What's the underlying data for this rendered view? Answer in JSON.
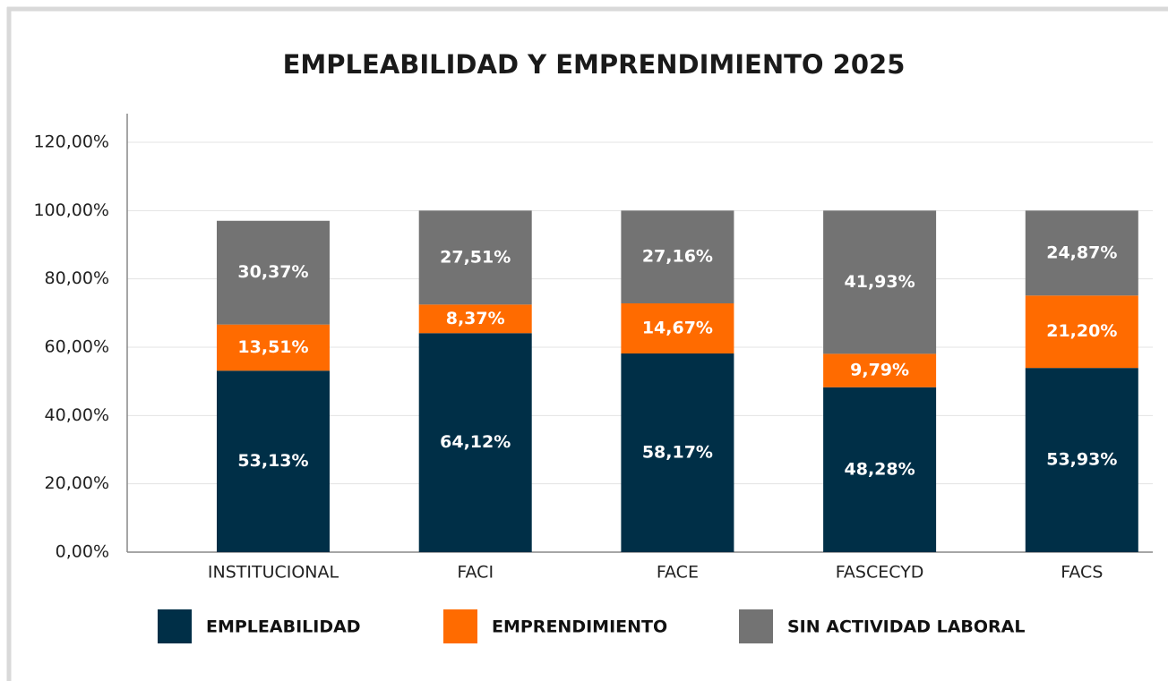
{
  "chart_data": {
    "type": "stacked_bar",
    "title": "EMPLEABILIDAD Y EMPRENDIMIENTO 2025",
    "categories": [
      "INSTITUCIONAL",
      "FACI",
      "FACE",
      "FASCECYD",
      "FACS"
    ],
    "series": [
      {
        "name": "EMPLEABILIDAD",
        "color": "#002f47",
        "values": [
          53.13,
          64.12,
          58.17,
          48.28,
          53.93
        ],
        "value_labels": [
          "53,13%",
          "64,12%",
          "58,17%",
          "48,28%",
          "53,93%"
        ]
      },
      {
        "name": "EMPRENDIMIENTO",
        "color": "#ff6b00",
        "values": [
          13.51,
          8.37,
          14.67,
          9.79,
          21.2
        ],
        "value_labels": [
          "13,51%",
          "8,37%",
          "14,67%",
          "9,79%",
          "21,20%"
        ]
      },
      {
        "name": "SIN ACTIVIDAD LABORAL",
        "color": "#737373",
        "values": [
          30.37,
          27.51,
          27.16,
          41.93,
          24.87
        ],
        "value_labels": [
          "30,37%",
          "27,51%",
          "27,16%",
          "41,93%",
          "24,87%"
        ]
      }
    ],
    "ylim": [
      0,
      120
    ],
    "yticks": [
      {
        "value": 0,
        "label": "0,00%"
      },
      {
        "value": 20,
        "label": "20,00%"
      },
      {
        "value": 40,
        "label": "40,00%"
      },
      {
        "value": 60,
        "label": "60,00%"
      },
      {
        "value": 80,
        "label": "80,00%"
      },
      {
        "value": 100,
        "label": "100,00%"
      },
      {
        "value": 120,
        "label": "120,00%"
      }
    ],
    "grid": true,
    "legend": "bottom"
  }
}
